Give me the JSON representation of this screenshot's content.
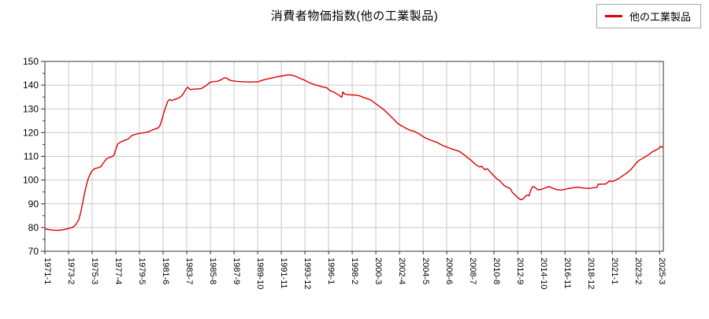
{
  "title": "消費者物価指数(他の工業製品)",
  "legend": {
    "label": "他の工業製品",
    "position": "top-right"
  },
  "colors": {
    "line": "#dd0000",
    "grid": "#c9c9c9",
    "axis": "#333333",
    "legend_border": "#a8a8a8",
    "text": "#000000",
    "background": "#ffffff"
  },
  "chart_data": {
    "type": "line",
    "title": "消費者物価指数(他の工業製品)",
    "series_name": "他の工業製品",
    "xlabel": "",
    "ylabel": "",
    "ylim": [
      70,
      150
    ],
    "y_ticks": [
      70,
      80,
      90,
      100,
      110,
      120,
      130,
      140,
      150
    ],
    "y_minor_step": 5,
    "grid": true,
    "x_unit": "year-month",
    "x_tick_labels": [
      "1971-1",
      "1973-2",
      "1975-3",
      "1977-4",
      "1979-5",
      "1981-6",
      "1983-7",
      "1985-8",
      "1987-9",
      "1989-10",
      "1991-11",
      "1993-12",
      "1996-1",
      "1998-2",
      "2000-3",
      "2002-4",
      "2004-5",
      "2006-6",
      "2008-7",
      "2010-8",
      "2012-9",
      "2014-10",
      "2016-11",
      "2018-12",
      "2021-1",
      "2023-2",
      "2025-3"
    ],
    "x_tick_interval_months": 25,
    "x_range": [
      "1971-1",
      "2025-6"
    ],
    "anchors": [
      [
        "1971-1",
        79.5
      ],
      [
        "1971-4",
        79.2
      ],
      [
        "1971-9",
        78.9
      ],
      [
        "1972-3",
        78.8
      ],
      [
        "1972-9",
        79.1
      ],
      [
        "1973-1",
        79.5
      ],
      [
        "1973-7",
        80.2
      ],
      [
        "1973-10",
        81.4
      ],
      [
        "1974-1",
        83.5
      ],
      [
        "1974-3",
        86.5
      ],
      [
        "1974-5",
        90.5
      ],
      [
        "1974-7",
        94.5
      ],
      [
        "1974-9",
        98.0
      ],
      [
        "1974-11",
        100.8
      ],
      [
        "1975-1",
        102.6
      ],
      [
        "1975-3",
        104.0
      ],
      [
        "1975-6",
        104.9
      ],
      [
        "1975-9",
        105.2
      ],
      [
        "1975-12",
        105.6
      ],
      [
        "1976-3",
        107.3
      ],
      [
        "1976-6",
        108.9
      ],
      [
        "1976-9",
        109.5
      ],
      [
        "1976-12",
        109.9
      ],
      [
        "1977-2",
        110.5
      ],
      [
        "1977-4",
        113.0
      ],
      [
        "1977-6",
        115.2
      ],
      [
        "1977-9",
        116.0
      ],
      [
        "1978-1",
        116.7
      ],
      [
        "1978-5",
        117.3
      ],
      [
        "1978-9",
        118.8
      ],
      [
        "1979-1",
        119.3
      ],
      [
        "1979-5",
        119.7
      ],
      [
        "1979-9",
        119.9
      ],
      [
        "1980-1",
        120.2
      ],
      [
        "1980-5",
        120.8
      ],
      [
        "1980-9",
        121.5
      ],
      [
        "1981-1",
        122.0
      ],
      [
        "1981-3",
        123.2
      ],
      [
        "1981-5",
        125.8
      ],
      [
        "1981-7",
        128.7
      ],
      [
        "1981-9",
        131.0
      ],
      [
        "1981-11",
        133.2
      ],
      [
        "1982-1",
        134.0
      ],
      [
        "1982-3",
        133.5
      ],
      [
        "1982-5",
        133.8
      ],
      [
        "1982-8",
        134.2
      ],
      [
        "1982-11",
        134.7
      ],
      [
        "1983-2",
        135.6
      ],
      [
        "1983-4",
        136.8
      ],
      [
        "1983-6",
        138.2
      ],
      [
        "1983-8",
        139.1
      ],
      [
        "1983-11",
        138.1
      ],
      [
        "1984-2",
        138.3
      ],
      [
        "1984-6",
        138.4
      ],
      [
        "1984-10",
        138.5
      ],
      [
        "1985-1",
        139.2
      ],
      [
        "1985-4",
        140.0
      ],
      [
        "1985-6",
        140.7
      ],
      [
        "1985-8",
        141.2
      ],
      [
        "1985-11",
        141.5
      ],
      [
        "1986-3",
        141.6
      ],
      [
        "1986-6",
        142.0
      ],
      [
        "1986-9",
        142.7
      ],
      [
        "1986-11",
        143.1
      ],
      [
        "1987-1",
        143.0
      ],
      [
        "1987-3",
        142.5
      ],
      [
        "1987-5",
        142.0
      ],
      [
        "1987-8",
        141.8
      ],
      [
        "1987-11",
        141.6
      ],
      [
        "1988-3",
        141.5
      ],
      [
        "1988-8",
        141.4
      ],
      [
        "1989-1",
        141.3
      ],
      [
        "1989-6",
        141.4
      ],
      [
        "1989-10",
        141.4
      ],
      [
        "1990-1",
        141.8
      ],
      [
        "1990-5",
        142.3
      ],
      [
        "1990-9",
        142.7
      ],
      [
        "1991-1",
        143.0
      ],
      [
        "1991-5",
        143.4
      ],
      [
        "1991-9",
        143.7
      ],
      [
        "1992-1",
        144.0
      ],
      [
        "1992-4",
        144.2
      ],
      [
        "1992-7",
        144.4
      ],
      [
        "1992-10",
        144.2
      ],
      [
        "1993-1",
        143.9
      ],
      [
        "1993-4",
        143.4
      ],
      [
        "1993-7",
        142.8
      ],
      [
        "1993-10",
        142.4
      ],
      [
        "1994-1",
        141.8
      ],
      [
        "1994-5",
        141.0
      ],
      [
        "1994-9",
        140.4
      ],
      [
        "1995-1",
        139.9
      ],
      [
        "1995-6",
        139.3
      ],
      [
        "1995-11",
        138.9
      ],
      [
        "1996-3",
        137.6
      ],
      [
        "1996-7",
        137.0
      ],
      [
        "1996-11",
        136.0
      ],
      [
        "1997-3",
        134.9
      ],
      [
        "1997-4",
        137.2
      ],
      [
        "1997-6",
        136.3
      ],
      [
        "1997-9",
        136.0
      ],
      [
        "1998-2",
        135.9
      ],
      [
        "1998-6",
        135.8
      ],
      [
        "1998-10",
        135.5
      ],
      [
        "1999-2",
        134.8
      ],
      [
        "1999-6",
        134.3
      ],
      [
        "1999-10",
        133.7
      ],
      [
        "2000-2",
        132.4
      ],
      [
        "2000-6",
        131.3
      ],
      [
        "2000-10",
        130.1
      ],
      [
        "2001-2",
        128.7
      ],
      [
        "2001-6",
        127.2
      ],
      [
        "2001-10",
        125.6
      ],
      [
        "2002-2",
        123.9
      ],
      [
        "2002-6",
        122.9
      ],
      [
        "2002-10",
        122.0
      ],
      [
        "2003-2",
        121.2
      ],
      [
        "2003-8",
        120.5
      ],
      [
        "2004-1",
        119.4
      ],
      [
        "2004-7",
        117.8
      ],
      [
        "2005-1",
        116.8
      ],
      [
        "2005-7",
        116.0
      ],
      [
        "2006-1",
        114.7
      ],
      [
        "2006-7",
        113.8
      ],
      [
        "2007-1",
        112.9
      ],
      [
        "2007-7",
        112.2
      ],
      [
        "2008-1",
        110.5
      ],
      [
        "2008-4",
        109.4
      ],
      [
        "2008-7",
        108.6
      ],
      [
        "2008-10",
        107.5
      ],
      [
        "2009-1",
        106.4
      ],
      [
        "2009-5",
        105.5
      ],
      [
        "2009-7",
        105.9
      ],
      [
        "2009-10",
        104.4
      ],
      [
        "2010-1",
        104.8
      ],
      [
        "2010-4",
        103.4
      ],
      [
        "2010-8",
        101.8
      ],
      [
        "2010-11",
        100.5
      ],
      [
        "2011-2",
        99.8
      ],
      [
        "2011-5",
        98.4
      ],
      [
        "2011-7",
        97.7
      ],
      [
        "2011-9",
        97.2
      ],
      [
        "2011-11",
        96.8
      ],
      [
        "2012-1",
        96.5
      ],
      [
        "2012-3",
        95.0
      ],
      [
        "2012-6",
        93.8
      ],
      [
        "2012-9",
        92.6
      ],
      [
        "2012-12",
        91.7
      ],
      [
        "2013-3",
        92.1
      ],
      [
        "2013-5",
        93.1
      ],
      [
        "2013-7",
        93.7
      ],
      [
        "2013-9",
        93.4
      ],
      [
        "2013-11",
        96.0
      ],
      [
        "2014-1",
        97.3
      ],
      [
        "2014-3",
        97.0
      ],
      [
        "2014-6",
        95.9
      ],
      [
        "2014-10",
        96.1
      ],
      [
        "2015-2",
        96.7
      ],
      [
        "2015-6",
        97.3
      ],
      [
        "2015-10",
        96.6
      ],
      [
        "2016-2",
        96.0
      ],
      [
        "2016-6",
        95.8
      ],
      [
        "2016-10",
        96.0
      ],
      [
        "2017-2",
        96.4
      ],
      [
        "2017-8",
        96.8
      ],
      [
        "2017-12",
        97.0
      ],
      [
        "2018-4",
        96.8
      ],
      [
        "2018-8",
        96.6
      ],
      [
        "2018-12",
        96.5
      ],
      [
        "2019-4",
        96.7
      ],
      [
        "2019-9",
        97.0
      ],
      [
        "2019-10",
        98.2
      ],
      [
        "2020-2",
        98.3
      ],
      [
        "2020-6",
        98.3
      ],
      [
        "2020-10",
        99.6
      ],
      [
        "2020-12",
        99.4
      ],
      [
        "2021-3",
        99.6
      ],
      [
        "2021-6",
        100.3
      ],
      [
        "2021-9",
        100.9
      ],
      [
        "2021-12",
        101.8
      ],
      [
        "2022-3",
        102.6
      ],
      [
        "2022-6",
        103.5
      ],
      [
        "2022-9",
        104.6
      ],
      [
        "2022-12",
        106.0
      ],
      [
        "2023-2",
        107.0
      ],
      [
        "2023-5",
        108.2
      ],
      [
        "2023-8",
        108.9
      ],
      [
        "2023-11",
        109.6
      ],
      [
        "2024-2",
        110.3
      ],
      [
        "2024-5",
        111.2
      ],
      [
        "2024-8",
        112.1
      ],
      [
        "2024-11",
        112.6
      ],
      [
        "2025-1",
        113.1
      ],
      [
        "2025-3",
        113.6
      ],
      [
        "2025-4",
        114.2
      ],
      [
        "2025-6",
        113.9
      ]
    ]
  }
}
